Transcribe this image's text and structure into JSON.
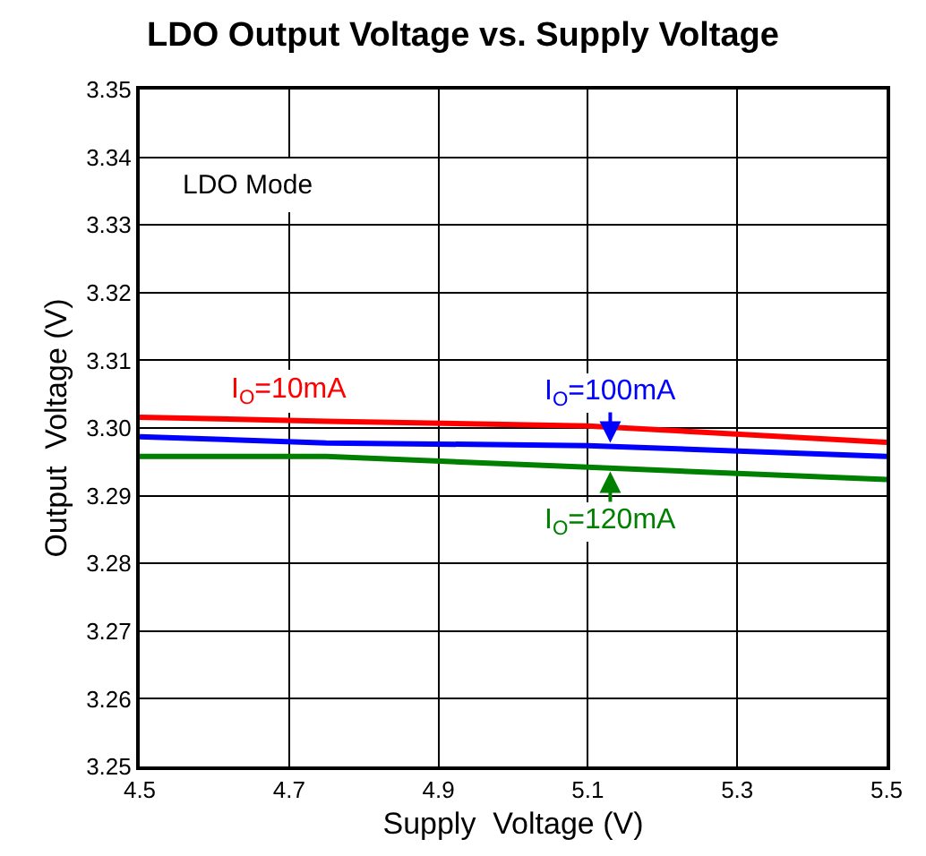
{
  "chart_data": {
    "type": "line",
    "title": "LDO Output Voltage vs. Supply Voltage",
    "xlabel": "Supply  Voltage (V)",
    "ylabel": "Output  Voltage (V)",
    "x": [
      4.5,
      4.75,
      5.1,
      5.5
    ],
    "series": [
      {
        "color": "#ff0000",
        "values": [
          3.3016,
          3.301,
          3.3003,
          3.2979
        ]
      },
      {
        "color": "#0000ff",
        "values": [
          3.2987,
          3.2978,
          3.2974,
          3.2958
        ]
      },
      {
        "color": "#008000",
        "values": [
          3.2958,
          3.2958,
          3.2942,
          3.2924
        ]
      }
    ],
    "annotations": [
      "I$_{O}$=10mA",
      {
        "text": "I$_{O}$=100mA",
        "x": 5.13,
        "y": 3.2973
      },
      {
        "text": "I$_{O}$=120mA",
        "x": 5.13,
        "y": 3.2941
      },
      "LDO Mode"
    ],
    "xlim": [
      4.5,
      5.5
    ],
    "xticks": [
      4.5,
      4.7,
      4.9,
      5.1,
      5.3,
      5.5
    ],
    "ylim": [
      3.25,
      3.35
    ],
    "yticks": [
      3.25,
      3.26,
      3.27,
      3.28,
      3.29,
      {
        "value": 3.3,
        "label": "3.30"
      },
      3.31,
      3.32,
      3.33,
      3.34,
      3.35
    ],
    "grid": true,
    "legend": false,
    "marker": "none",
    "line_style": "solid"
  }
}
